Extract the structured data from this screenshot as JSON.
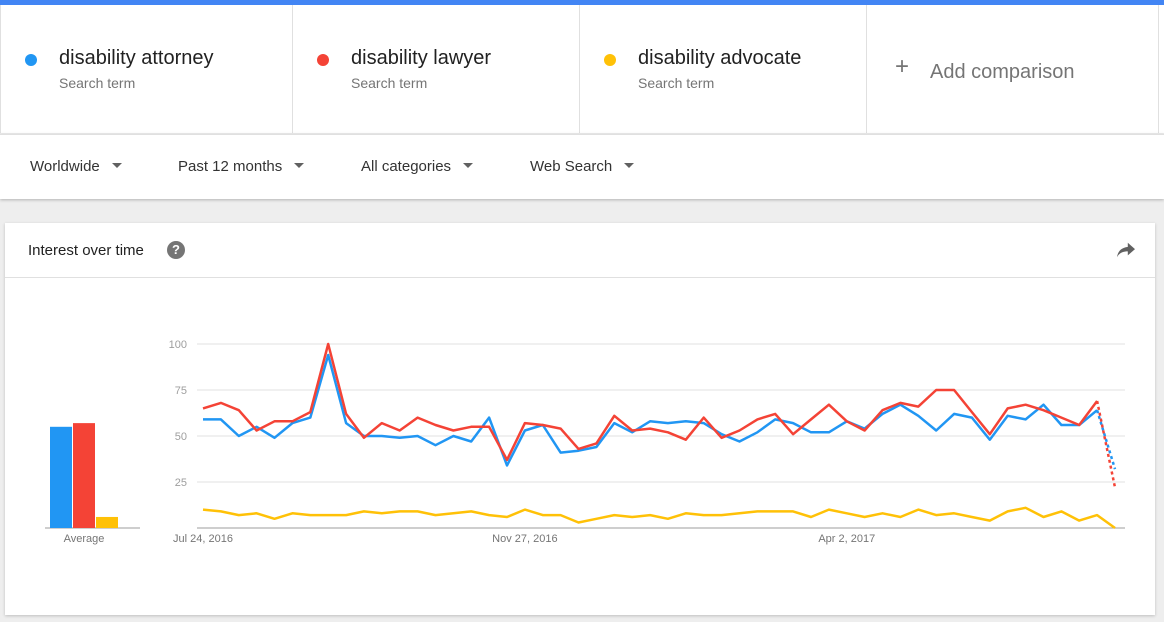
{
  "colors": {
    "accent": "#4285f4",
    "attorney": "#2196f3",
    "lawyer": "#f44336",
    "advocate": "#ffc107",
    "grid": "#e0e0e0"
  },
  "terms": [
    {
      "name": "disability attorney",
      "sub": "Search term"
    },
    {
      "name": "disability lawyer",
      "sub": "Search term"
    },
    {
      "name": "disability advocate",
      "sub": "Search term"
    }
  ],
  "add_comparison": "Add comparison",
  "filters": {
    "region": "Worldwide",
    "time": "Past 12 months",
    "category": "All categories",
    "property": "Web Search"
  },
  "card": {
    "title": "Interest over time",
    "help_icon": "help-icon",
    "share_icon": "share-icon"
  },
  "chart_data": [
    {
      "type": "bar",
      "categories": [
        "Average"
      ],
      "series": [
        {
          "name": "disability attorney",
          "values": [
            55
          ]
        },
        {
          "name": "disability lawyer",
          "values": [
            57
          ]
        },
        {
          "name": "disability advocate",
          "values": [
            6
          ]
        }
      ],
      "xlabel": "Average",
      "ylim": [
        0,
        100
      ]
    },
    {
      "type": "line",
      "x_ticks": [
        "Jul 24, 2016",
        "Nov 27, 2016",
        "Apr 2, 2017"
      ],
      "y_ticks": [
        25,
        50,
        75,
        100
      ],
      "ylim": [
        0,
        100
      ],
      "grid": true,
      "x": [
        "2016-07-24",
        "2016-07-31",
        "2016-08-07",
        "2016-08-14",
        "2016-08-21",
        "2016-08-28",
        "2016-09-04",
        "2016-09-11",
        "2016-09-18",
        "2016-09-25",
        "2016-10-02",
        "2016-10-09",
        "2016-10-16",
        "2016-10-23",
        "2016-10-30",
        "2016-11-06",
        "2016-11-13",
        "2016-11-20",
        "2016-11-27",
        "2016-12-04",
        "2016-12-11",
        "2016-12-18",
        "2016-12-25",
        "2017-01-01",
        "2017-01-08",
        "2017-01-15",
        "2017-01-22",
        "2017-01-29",
        "2017-02-05",
        "2017-02-12",
        "2017-02-19",
        "2017-02-26",
        "2017-03-05",
        "2017-03-12",
        "2017-03-19",
        "2017-03-26",
        "2017-04-02",
        "2017-04-09",
        "2017-04-16",
        "2017-04-23",
        "2017-04-30",
        "2017-05-07",
        "2017-05-14",
        "2017-05-21",
        "2017-05-28",
        "2017-06-04",
        "2017-06-11",
        "2017-06-18",
        "2017-06-25",
        "2017-07-02",
        "2017-07-09",
        "2017-07-16"
      ],
      "series": [
        {
          "name": "disability attorney",
          "partial_last": true,
          "values": [
            59,
            59,
            50,
            55,
            49,
            57,
            60,
            94,
            57,
            50,
            50,
            49,
            50,
            45,
            50,
            47,
            60,
            34,
            53,
            56,
            41,
            42,
            44,
            57,
            52,
            58,
            57,
            58,
            57,
            51,
            47,
            52,
            59,
            57,
            52,
            52,
            58,
            54,
            62,
            67,
            61,
            53,
            62,
            60,
            48,
            61,
            59,
            67,
            56,
            56,
            64,
            32
          ]
        },
        {
          "name": "disability lawyer",
          "partial_last": true,
          "values": [
            65,
            68,
            64,
            53,
            58,
            58,
            63,
            100,
            62,
            49,
            57,
            53,
            60,
            56,
            53,
            55,
            55,
            37,
            57,
            56,
            54,
            43,
            46,
            61,
            53,
            54,
            52,
            48,
            60,
            49,
            53,
            59,
            62,
            51,
            59,
            67,
            58,
            53,
            64,
            68,
            66,
            75,
            75,
            63,
            51,
            65,
            67,
            64,
            60,
            56,
            69,
            22
          ]
        },
        {
          "name": "disability advocate",
          "partial_last": false,
          "values": [
            10,
            9,
            7,
            8,
            5,
            8,
            7,
            7,
            7,
            9,
            8,
            9,
            9,
            7,
            8,
            9,
            7,
            6,
            10,
            7,
            7,
            3,
            5,
            7,
            6,
            7,
            5,
            8,
            7,
            7,
            8,
            9,
            9,
            9,
            6,
            10,
            8,
            6,
            8,
            6,
            10,
            7,
            8,
            6,
            4,
            9,
            11,
            6,
            9,
            4,
            7,
            0
          ]
        }
      ]
    }
  ]
}
